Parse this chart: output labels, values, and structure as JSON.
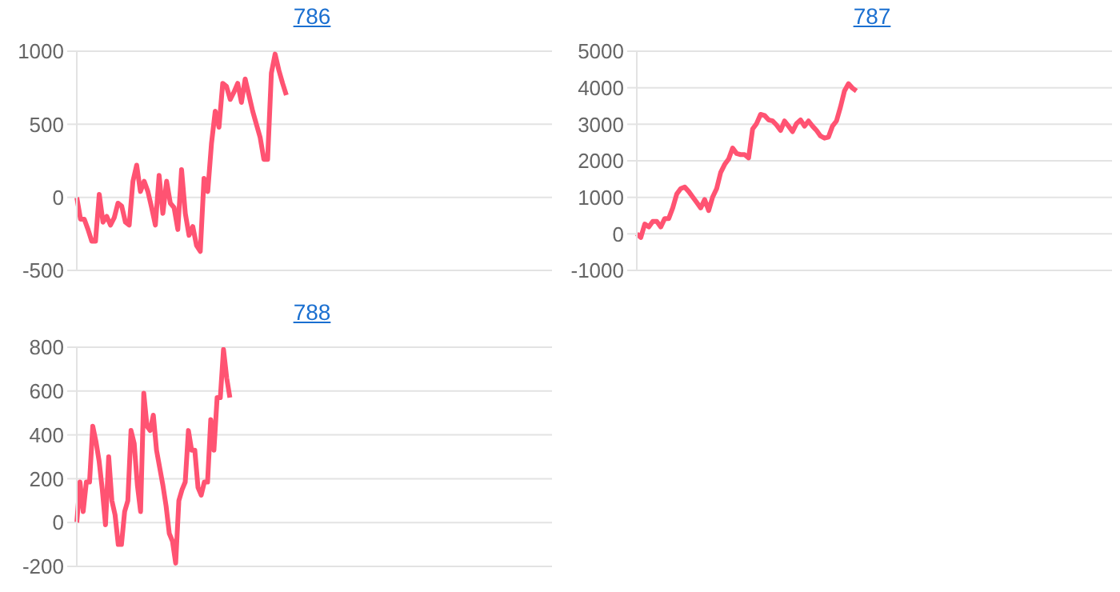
{
  "chart_data": [
    {
      "type": "line",
      "title": "786",
      "categories": [
        null,
        null,
        null,
        null,
        null,
        null,
        null,
        null,
        null,
        null,
        null,
        null,
        null,
        null,
        null,
        null,
        null,
        null,
        null,
        null,
        null,
        null,
        null,
        null,
        null,
        null,
        null,
        null,
        null,
        null,
        null,
        null,
        null,
        null,
        null,
        null,
        null,
        null,
        null,
        null,
        null,
        null,
        null,
        null,
        null,
        null,
        null,
        null,
        null,
        null,
        null,
        null,
        null,
        null,
        null,
        null,
        null,
        null,
        null,
        null,
        null,
        null,
        null,
        null,
        null,
        null,
        null,
        null,
        null,
        null,
        null,
        null,
        null,
        null,
        null,
        null,
        null,
        null,
        null,
        null,
        null,
        null,
        null,
        null,
        null,
        null,
        null,
        null,
        null,
        null,
        null,
        null,
        null,
        null,
        null,
        null,
        null,
        null,
        null,
        null,
        null,
        null,
        null,
        null,
        null,
        null,
        null,
        null,
        null,
        null,
        null,
        null,
        null,
        null,
        null,
        null,
        null,
        null,
        null,
        null,
        null,
        null,
        null,
        null,
        null,
        null,
        null,
        null
      ],
      "series": [
        {
          "color": "#ff5372",
          "values": [
            0,
            -150,
            -150,
            -220,
            -300,
            -300,
            20,
            -170,
            -130,
            -190,
            -140,
            -40,
            -60,
            -170,
            -190,
            110,
            220,
            40,
            110,
            40,
            -70,
            -190,
            150,
            -110,
            110,
            -40,
            -70,
            -220,
            190,
            -110,
            -260,
            -200,
            -330,
            -370,
            130,
            40,
            370,
            590,
            480,
            780,
            760,
            670,
            720,
            780,
            650,
            810,
            700,
            590,
            500,
            410,
            260,
            260,
            850,
            980,
            870,
            780,
            700,
            null,
            null,
            null,
            null,
            null,
            null,
            null,
            null,
            null,
            null,
            null,
            null,
            null,
            null,
            null,
            null,
            null,
            null,
            null,
            null,
            null,
            null,
            null,
            null,
            null,
            null,
            null,
            null,
            null,
            null,
            null,
            null,
            null,
            null,
            null,
            null,
            null,
            null,
            null,
            null,
            null,
            null,
            null,
            null,
            null,
            null,
            null,
            null,
            null,
            null,
            null,
            null,
            null,
            null,
            null,
            null,
            null,
            null,
            null,
            null,
            null,
            null,
            null,
            null,
            null,
            null,
            null,
            null,
            null,
            null,
            null
          ]
        }
      ],
      "ylim": [
        -500,
        1000
      ],
      "yticks": [
        -500,
        0,
        500,
        1000
      ],
      "grid": "y",
      "tick_labels": "y",
      "legend": false,
      "marker": "none",
      "line_style": "solid"
    },
    {
      "type": "line",
      "title": "787",
      "categories": [
        null,
        null,
        null,
        null,
        null,
        null,
        null,
        null,
        null,
        null,
        null,
        null,
        null,
        null,
        null,
        null,
        null,
        null,
        null,
        null,
        null,
        null,
        null,
        null,
        null,
        null,
        null,
        null,
        null,
        null,
        null,
        null,
        null,
        null,
        null,
        null,
        null,
        null,
        null,
        null,
        null,
        null,
        null,
        null,
        null,
        null,
        null,
        null,
        null,
        null,
        null,
        null,
        null,
        null,
        null,
        null,
        null,
        null,
        null,
        null,
        null,
        null,
        null,
        null,
        null,
        null,
        null,
        null,
        null,
        null,
        null,
        null,
        null,
        null,
        null,
        null,
        null,
        null,
        null,
        null,
        null,
        null,
        null,
        null,
        null,
        null,
        null,
        null,
        null,
        null,
        null,
        null,
        null,
        null,
        null,
        null,
        null,
        null,
        null,
        null,
        null,
        null,
        null,
        null,
        null,
        null,
        null,
        null,
        null,
        null,
        null,
        null,
        null,
        null,
        null,
        null,
        null,
        null,
        null,
        null
      ],
      "series": [
        {
          "color": "#ff5372",
          "values": [
            0,
            -100,
            270,
            190,
            340,
            340,
            190,
            420,
            420,
            710,
            1090,
            1240,
            1280,
            1160,
            1010,
            860,
            710,
            940,
            640,
            1010,
            1240,
            1680,
            1900,
            2050,
            2350,
            2200,
            2170,
            2170,
            2080,
            2870,
            3020,
            3270,
            3240,
            3120,
            3090,
            2980,
            2830,
            3090,
            2950,
            2800,
            3020,
            3120,
            2950,
            3090,
            2950,
            2830,
            2680,
            2620,
            2650,
            2950,
            3090,
            3470,
            3910,
            4110,
            3990,
            3910,
            null,
            null,
            null,
            null,
            null,
            null,
            null,
            null,
            null,
            null,
            null,
            null,
            null,
            null,
            null,
            null,
            null,
            null,
            null,
            null,
            null,
            null,
            null,
            null,
            null,
            null,
            null,
            null,
            null,
            null,
            null,
            null,
            null,
            null,
            null,
            null,
            null,
            null,
            null,
            null,
            null,
            null,
            null,
            null,
            null,
            null,
            null,
            null,
            null,
            null,
            null,
            null,
            null,
            null,
            null,
            null,
            null,
            null,
            null,
            null,
            null,
            null,
            null,
            null
          ]
        }
      ],
      "ylim": [
        -1000,
        5000
      ],
      "yticks": [
        -1000,
        0,
        1000,
        2000,
        3000,
        4000,
        5000
      ],
      "grid": "y",
      "tick_labels": "y",
      "legend": false,
      "marker": "none",
      "line_style": "solid"
    },
    {
      "type": "line",
      "title": "788",
      "categories": [
        null,
        null,
        null,
        null,
        null,
        null,
        null,
        null,
        null,
        null,
        null,
        null,
        null,
        null,
        null,
        null,
        null,
        null,
        null,
        null,
        null,
        null,
        null,
        null,
        null,
        null,
        null,
        null,
        null,
        null,
        null,
        null,
        null,
        null,
        null,
        null,
        null,
        null,
        null,
        null,
        null,
        null,
        null,
        null,
        null,
        null,
        null,
        null,
        null,
        null,
        null,
        null,
        null,
        null,
        null,
        null,
        null,
        null,
        null,
        null,
        null,
        null,
        null,
        null,
        null,
        null,
        null,
        null,
        null,
        null,
        null,
        null,
        null,
        null,
        null,
        null,
        null,
        null,
        null,
        null,
        null,
        null,
        null,
        null,
        null,
        null,
        null,
        null,
        null,
        null,
        null,
        null,
        null,
        null,
        null,
        null,
        null,
        null,
        null,
        null,
        null,
        null,
        null,
        null,
        null,
        null,
        null,
        null,
        null,
        null,
        null,
        null,
        null,
        null,
        null,
        null,
        null,
        null,
        null,
        null,
        null,
        null,
        null,
        null,
        null,
        null,
        null,
        null,
        null,
        null,
        null,
        null,
        null,
        null,
        null,
        null,
        null,
        null,
        null,
        null,
        null,
        null,
        null,
        null,
        null,
        null,
        null,
        null,
        null,
        null
      ],
      "series": [
        {
          "color": "#ff5372",
          "values": [
            0,
            185,
            50,
            185,
            185,
            440,
            370,
            280,
            150,
            -10,
            300,
            100,
            35,
            -100,
            -100,
            50,
            100,
            420,
            360,
            170,
            50,
            590,
            440,
            420,
            490,
            330,
            250,
            170,
            75,
            -50,
            -85,
            -185,
            100,
            150,
            185,
            420,
            330,
            330,
            160,
            125,
            185,
            185,
            470,
            330,
            570,
            570,
            790,
            660,
            570,
            null,
            null,
            null,
            null,
            null,
            null,
            null,
            null,
            null,
            null,
            null,
            null,
            null,
            null,
            null,
            null,
            null,
            null,
            null,
            null,
            null,
            null,
            null,
            null,
            null,
            null,
            null,
            null,
            null,
            null,
            null,
            null,
            null,
            null,
            null,
            null,
            null,
            null,
            null,
            null,
            null,
            null,
            null,
            null,
            null,
            null,
            null,
            null,
            null,
            null,
            null,
            null,
            null,
            null,
            null,
            null,
            null,
            null,
            null,
            null,
            null,
            null,
            null,
            null,
            null,
            null,
            null,
            null,
            null,
            null,
            null,
            null,
            null,
            null,
            null,
            null,
            null,
            null,
            null,
            null,
            null,
            null,
            null,
            null,
            null,
            null,
            null,
            null,
            null,
            null,
            null,
            null,
            null,
            null,
            null,
            null,
            null,
            null,
            null,
            null,
            null
          ]
        }
      ],
      "ylim": [
        -200,
        800
      ],
      "yticks": [
        -200,
        0,
        200,
        400,
        600,
        800
      ],
      "grid": "y",
      "tick_labels": "y",
      "legend": false,
      "marker": "none",
      "line_style": "solid"
    }
  ]
}
